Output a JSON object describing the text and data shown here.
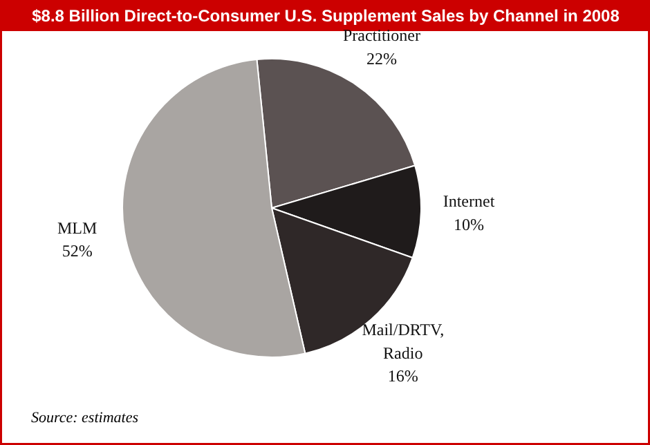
{
  "chart_data": {
    "type": "pie",
    "title": "$8.8 Billion Direct-to-Consumer U.S. Supplement Sales by Channel in 2008",
    "categories": [
      "Practitioner",
      "Internet",
      "Mail/DRTV, Radio",
      "MLM"
    ],
    "values": [
      22,
      10,
      16,
      52
    ],
    "value_labels": [
      "22%",
      "10%",
      "16%",
      "52%"
    ],
    "colors": [
      "#5b5252",
      "#1f1b1b",
      "#2f2828",
      "#a9a5a2"
    ],
    "annotations": [
      "Source: estimates"
    ]
  }
}
